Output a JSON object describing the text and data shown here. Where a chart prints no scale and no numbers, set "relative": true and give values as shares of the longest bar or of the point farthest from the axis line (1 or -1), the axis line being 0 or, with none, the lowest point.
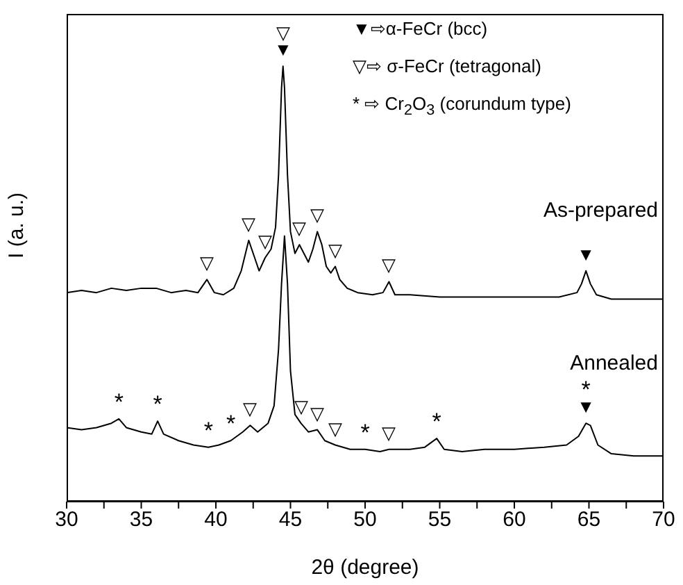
{
  "chart_data": {
    "type": "line",
    "relative": true,
    "xlabel": "2θ  (degree)",
    "ylabel": "I (a. u.)",
    "xlim": [
      30,
      70
    ],
    "xticks": [
      30,
      {
        "value": 32.5,
        "label": null
      },
      35,
      {
        "value": 37.5,
        "label": null
      },
      40,
      {
        "value": 42.5,
        "label": null
      },
      45,
      {
        "value": 47.5,
        "label": null
      },
      50,
      {
        "value": 52.5,
        "label": null
      },
      55,
      {
        "value": 57.5,
        "label": null
      },
      60,
      {
        "value": 62.5,
        "label": null
      },
      65,
      {
        "value": 67.5,
        "label": null
      },
      70
    ],
    "marker": "none",
    "line_style": "solid",
    "series": [
      {
        "name": "As-prepared",
        "color": "#000000",
        "x": [
          30,
          31,
          32,
          33,
          34,
          35,
          36,
          37,
          38,
          38.8,
          39.4,
          39.9,
          40.5,
          41.2,
          41.7,
          42.2,
          42.6,
          42.9,
          43.3,
          43.7,
          44.0,
          44.2,
          44.4,
          44.5,
          44.6,
          44.8,
          45.0,
          45.3,
          45.6,
          45.9,
          46.2,
          46.5,
          46.8,
          47.1,
          47.4,
          47.7,
          48.0,
          48.3,
          48.8,
          49.5,
          50.5,
          51.2,
          51.6,
          52.0,
          53,
          55,
          57,
          59,
          61,
          63,
          64.2,
          64.5,
          64.8,
          65.1,
          65.5,
          66.5,
          68,
          70
        ],
        "values": [
          0.48,
          0.485,
          0.48,
          0.49,
          0.485,
          0.49,
          0.49,
          0.48,
          0.485,
          0.48,
          0.51,
          0.48,
          0.475,
          0.49,
          0.53,
          0.6,
          0.56,
          0.53,
          0.56,
          0.58,
          0.63,
          0.75,
          0.95,
          1.0,
          0.95,
          0.75,
          0.62,
          0.57,
          0.59,
          0.57,
          0.55,
          0.58,
          0.62,
          0.59,
          0.54,
          0.525,
          0.54,
          0.51,
          0.49,
          0.48,
          0.475,
          0.48,
          0.505,
          0.475,
          0.475,
          0.47,
          0.47,
          0.47,
          0.47,
          0.47,
          0.48,
          0.5,
          0.53,
          0.5,
          0.475,
          0.465,
          0.465,
          0.465
        ]
      },
      {
        "name": "Annealed",
        "color": "#000000",
        "x": [
          30,
          31,
          32,
          33,
          33.5,
          34,
          35,
          35.7,
          36.1,
          36.5,
          37.5,
          38.5,
          39.5,
          40.2,
          41,
          41.8,
          42.3,
          42.8,
          43.5,
          43.9,
          44.2,
          44.4,
          44.6,
          44.8,
          45.0,
          45.3,
          45.7,
          46.2,
          46.8,
          47.3,
          48,
          49,
          50,
          51,
          51.6,
          52,
          53,
          54,
          54.8,
          55.3,
          56.5,
          58,
          60,
          62,
          63.5,
          64.3,
          64.8,
          65.1,
          65.6,
          66.5,
          68,
          70
        ],
        "values": [
          0.17,
          0.165,
          0.17,
          0.18,
          0.19,
          0.17,
          0.16,
          0.155,
          0.185,
          0.155,
          0.14,
          0.13,
          0.125,
          0.13,
          0.14,
          0.16,
          0.175,
          0.16,
          0.18,
          0.22,
          0.35,
          0.5,
          0.61,
          0.5,
          0.3,
          0.2,
          0.18,
          0.16,
          0.165,
          0.14,
          0.13,
          0.12,
          0.12,
          0.115,
          0.12,
          0.12,
          0.12,
          0.125,
          0.145,
          0.12,
          0.115,
          0.12,
          0.12,
          0.125,
          0.13,
          0.15,
          0.18,
          0.175,
          0.13,
          0.11,
          0.105,
          0.105
        ]
      }
    ],
    "annotations": [
      "▼⇨α-FeCr (bcc)",
      "▽⇨ σ-FeCr (tetragonal)",
      "* ⇨ Cr$_{2}$O$_{3}$ (corundum type)",
      {
        "text": "▼",
        "x": 44.5,
        "y": 1.0
      },
      {
        "text": "▽",
        "x": 44.5,
        "y": 1.0
      },
      {
        "text": "▽",
        "x": 39.4,
        "y": 0.51
      },
      {
        "text": "▽",
        "x": 42.2,
        "y": 0.6
      },
      {
        "text": "▽",
        "x": 43.3,
        "y": 0.56
      },
      {
        "text": "▽",
        "x": 45.6,
        "y": 0.59
      },
      {
        "text": "▽",
        "x": 46.8,
        "y": 0.62
      },
      {
        "text": "▽",
        "x": 48.0,
        "y": 0.54
      },
      {
        "text": "▽",
        "x": 51.6,
        "y": 0.505
      },
      {
        "text": "▼",
        "x": 64.8,
        "y": 0.53
      },
      {
        "text": "*",
        "x": 33.5,
        "y": 0.19
      },
      {
        "text": "*",
        "x": 36.1,
        "y": 0.185
      },
      {
        "text": "*",
        "x": 39.5,
        "y": 0.125
      },
      {
        "text": "*",
        "x": 41.0,
        "y": 0.14
      },
      {
        "text": "▽",
        "x": 42.3,
        "y": 0.175
      },
      {
        "text": "▽",
        "x": 45.7,
        "y": 0.18
      },
      {
        "text": "▽",
        "x": 46.8,
        "y": 0.165
      },
      {
        "text": "▽",
        "x": 48,
        "y": 0.13
      },
      {
        "text": "*",
        "x": 50,
        "y": 0.12
      },
      {
        "text": "▽",
        "x": 51.6,
        "y": 0.12
      },
      {
        "text": "*",
        "x": 54.8,
        "y": 0.145
      },
      {
        "text": "▼",
        "x": 64.8,
        "y": 0.18
      },
      {
        "text": "*",
        "x": 64.8,
        "y": 0.18
      }
    ]
  }
}
